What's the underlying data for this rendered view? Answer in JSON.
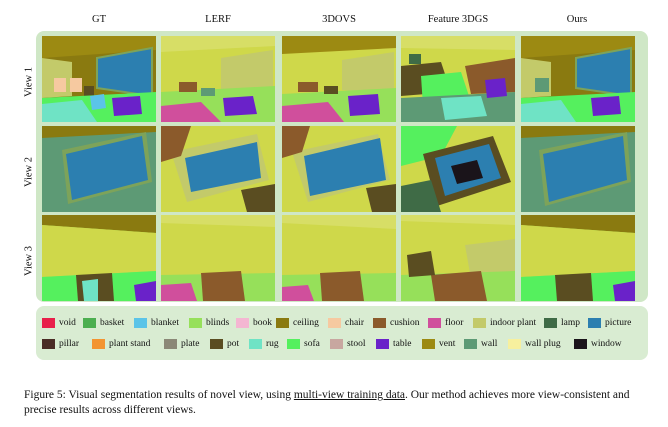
{
  "figure": {
    "columns": [
      "GT",
      "LERF",
      "3DOVS",
      "Feature 3DGS",
      "Ours"
    ],
    "rows": [
      "View 1",
      "View 2",
      "View 3"
    ]
  },
  "legend": [
    {
      "label": "void",
      "color": "#e8204a"
    },
    {
      "label": "basket",
      "color": "#4caf50"
    },
    {
      "label": "blanket",
      "color": "#5bc4e8"
    },
    {
      "label": "blinds",
      "color": "#96e05a"
    },
    {
      "label": "book",
      "color": "#f4b6d2"
    },
    {
      "label": "ceiling",
      "color": "#8a7a10"
    },
    {
      "label": "chair",
      "color": "#f6c9a0"
    },
    {
      "label": "cushion",
      "color": "#8b5a2b"
    },
    {
      "label": "floor",
      "color": "#d04f9c"
    },
    {
      "label": "indoor plant",
      "color": "#c3ca6a"
    },
    {
      "label": "lamp",
      "color": "#3f6b46"
    },
    {
      "label": "picture",
      "color": "#2c7fb0"
    },
    {
      "label": "pillar",
      "color": "#4a2c25"
    },
    {
      "label": "plant stand",
      "color": "#f39431"
    },
    {
      "label": "plate",
      "color": "#8b8877"
    },
    {
      "label": "pot",
      "color": "#5a4d21"
    },
    {
      "label": "rug",
      "color": "#6fe3c5"
    },
    {
      "label": "sofa",
      "color": "#55f05e"
    },
    {
      "label": "stool",
      "color": "#c8a7a0"
    },
    {
      "label": "table",
      "color": "#6a22c9"
    },
    {
      "label": "vent",
      "color": "#9c8a12"
    },
    {
      "label": "wall",
      "color": "#5d9a75"
    },
    {
      "label": "wall plug",
      "color": "#f7f09e"
    },
    {
      "label": "window",
      "color": "#1a141a"
    }
  ],
  "caption": {
    "prefix": "Figure 5:   Visual segmentation results of novel view, using ",
    "underlined": "multi-view training data",
    "suffix": ".  Our method achieves more view-consistent and precise results across different views."
  }
}
